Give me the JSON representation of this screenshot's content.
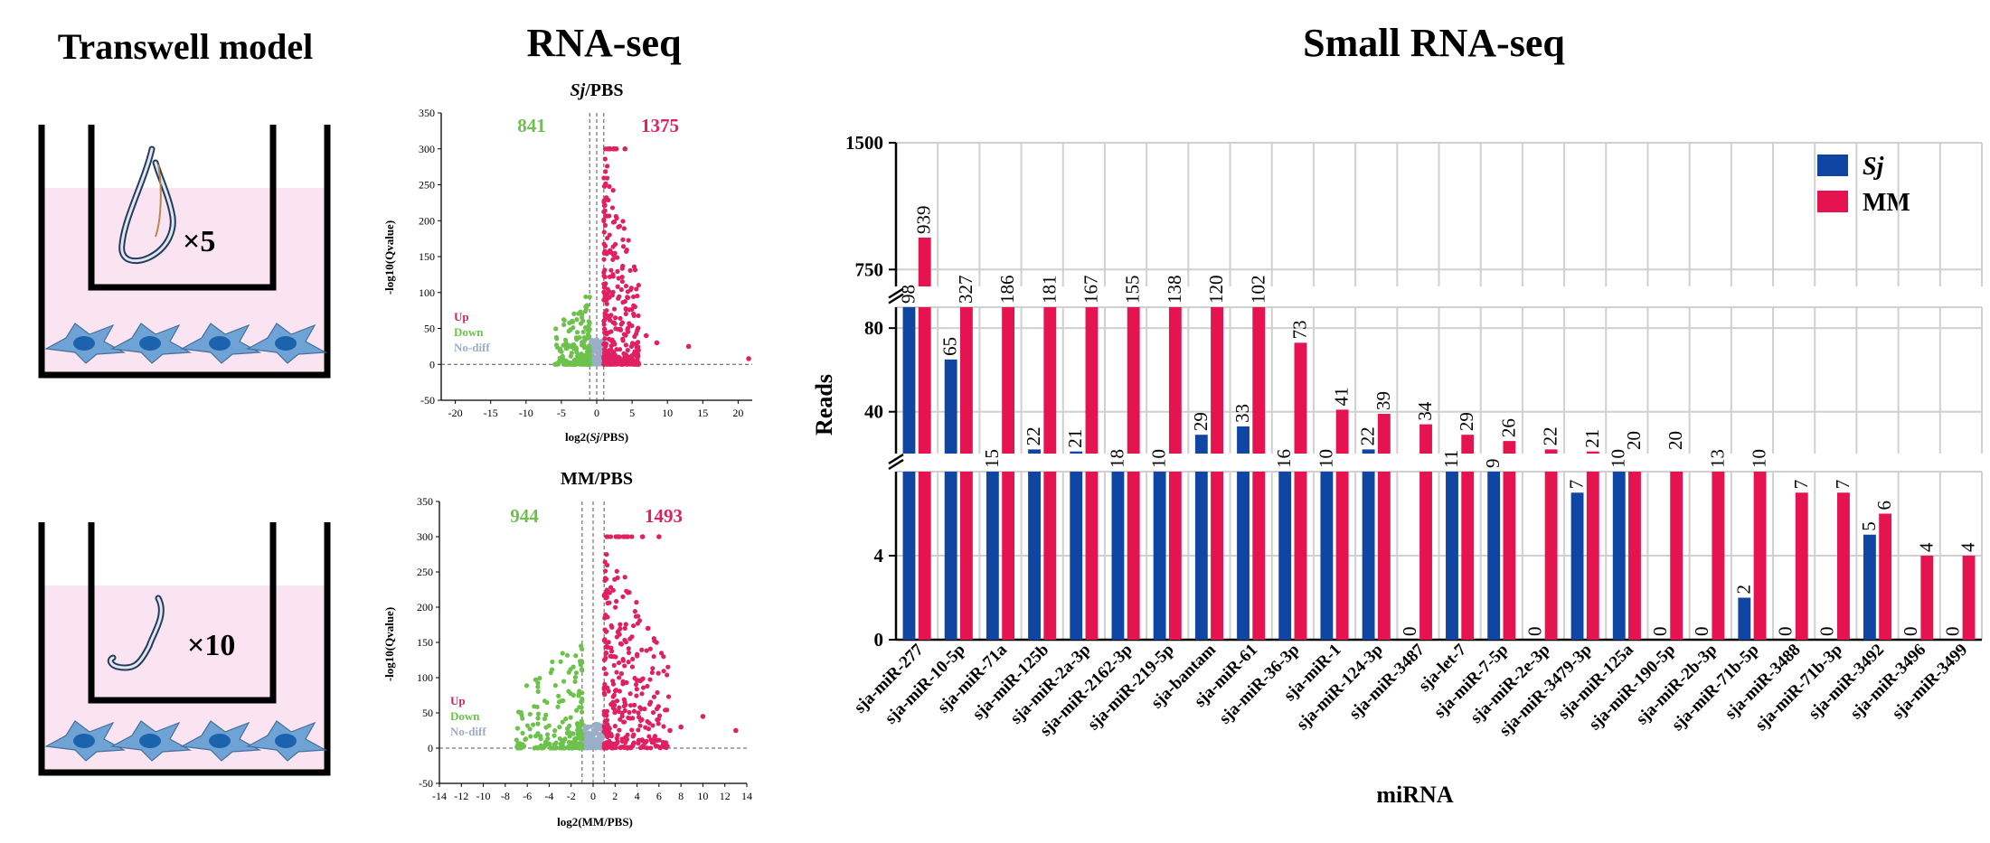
{
  "panels": {
    "transwell_title": "Transwell model",
    "rnaseq_title": "RNA-seq",
    "smallrna_title": "Small RNA-seq",
    "wells": [
      {
        "count_label": "×5"
      },
      {
        "count_label": "×10"
      }
    ]
  },
  "colors": {
    "sj": "#1046a3",
    "mm": "#e5134f",
    "up": "#e02060",
    "down": "#6cc24a",
    "nodiff": "#9aaec8",
    "well_fill": "#fbe4f1",
    "cell_body": "#6fa3d6",
    "cell_nucleus": "#1c63ad"
  },
  "chart_data": [
    {
      "type": "scatter",
      "title_prefix": "Sj",
      "title_suffix": "/PBS",
      "xlabel_prefix": "log2(",
      "xlabel_italic": "Sj",
      "xlabel_suffix": "/PBS)",
      "ylabel": "-log10(Qvalue)",
      "xlim": [
        -22,
        22
      ],
      "ylim": [
        -50,
        350
      ],
      "xticks": [
        "-20",
        "-15",
        "-10",
        "-5",
        "0",
        "5",
        "10",
        "15",
        "20"
      ],
      "xtick_values": [
        -20,
        -15,
        -10,
        -5,
        0,
        5,
        10,
        15,
        20
      ],
      "yticks": [
        "-50",
        "0",
        "50",
        "100",
        "150",
        "200",
        "250",
        "300",
        "350"
      ],
      "ytick_values": [
        -50,
        0,
        50,
        100,
        150,
        200,
        250,
        300,
        350
      ],
      "down_count": "841",
      "up_count": "1375",
      "legend": [
        "Up",
        "Down",
        "No-diff"
      ],
      "thresholds_x": [
        -1,
        1
      ],
      "threshold_y": 0,
      "cloud": {
        "down_max_y": 100,
        "up_max_y": 300,
        "spread": 5
      },
      "outliers": [
        [
          5.5,
          28
        ],
        [
          7,
          40
        ],
        [
          13,
          25
        ],
        [
          8.5,
          30
        ],
        [
          21.5,
          8
        ],
        [
          2.5,
          300
        ],
        [
          4,
          300
        ]
      ]
    },
    {
      "type": "scatter",
      "title_prefix": "MM",
      "title_suffix": "/PBS",
      "xlabel_prefix": "log2(",
      "xlabel_italic": "",
      "xlabel_suffix": "MM/PBS)",
      "ylabel": "-log10(Qvalue)",
      "xlim": [
        -14,
        14
      ],
      "ylim": [
        -50,
        350
      ],
      "xticks": [
        "-14",
        "-12",
        "-10",
        "-8",
        "-6",
        "-4",
        "-2",
        "0",
        "2",
        "4",
        "6",
        "8",
        "10",
        "12",
        "14"
      ],
      "xtick_values": [
        -14,
        -12,
        -10,
        -8,
        -6,
        -4,
        -2,
        0,
        2,
        4,
        6,
        8,
        10,
        12,
        14
      ],
      "yticks": [
        "-50",
        "0",
        "50",
        "100",
        "150",
        "200",
        "250",
        "300",
        "350"
      ],
      "ytick_values": [
        -50,
        0,
        50,
        100,
        150,
        200,
        250,
        300,
        350
      ],
      "down_count": "944",
      "up_count": "1493",
      "legend": [
        "Up",
        "Down",
        "No-diff"
      ],
      "thresholds_x": [
        -1,
        1
      ],
      "threshold_y": 0,
      "cloud": {
        "down_max_y": 160,
        "up_max_y": 300,
        "spread": 6
      },
      "outliers": [
        [
          5,
          170
        ],
        [
          6,
          300
        ],
        [
          7,
          25
        ],
        [
          8,
          30
        ],
        [
          10,
          45
        ],
        [
          13,
          25
        ],
        [
          4.5,
          300
        ]
      ]
    },
    {
      "type": "bar",
      "title": "Small RNA-seq",
      "xlabel": "miRNA",
      "ylabel": "Reads",
      "y_axis_breaks": "segmented: 0–8 | 20–90 | 650–1500",
      "yticks": [
        "0",
        "4",
        "40",
        "80",
        "750",
        "1500"
      ],
      "ytick_values": [
        0,
        4,
        40,
        80,
        750,
        1500
      ],
      "legend": [
        {
          "name": "Sj",
          "italic": true
        },
        {
          "name": "MM",
          "italic": false
        }
      ],
      "categories": [
        "sja-miR-277",
        "sja-miR-10-5p",
        "sja-miR-71a",
        "sja-miR-125b",
        "sja-miR-2a-3p",
        "sja-miR-2162-3p",
        "sja-miR-219-5p",
        "sja-bantam",
        "sja-miR-61",
        "sja-miR-36-3p",
        "sja-miR-1",
        "sja-miR-124-3p",
        "sja-miR-3487",
        "sja-let-7",
        "sja-miR-7-5p",
        "sja-miR-2e-3p",
        "sja-miR-3479-3p",
        "sja-miR-125a",
        "sja-miR-190-5p",
        "sja-miR-2b-3p",
        "sja-miR-71b-5p",
        "sja-miR-3488",
        "sja-miR-71b-3p",
        "sja-miR-3492",
        "sja-miR-3496",
        "sja-miR-3499"
      ],
      "series": [
        {
          "name": "Sj",
          "values": [
            98,
            65,
            15,
            22,
            21,
            18,
            10,
            29,
            33,
            16,
            10,
            22,
            0,
            11,
            9,
            0,
            7,
            10,
            0,
            0,
            2,
            0,
            0,
            5,
            0,
            0
          ],
          "labels": [
            "98",
            "65",
            "15",
            "22",
            "21",
            "18",
            "10",
            "",
            "",
            "",
            "",
            "",
            "0",
            "",
            "9",
            "0",
            "7",
            "10",
            "0",
            "0",
            "2",
            "0",
            "0",
            "5",
            "0",
            "0"
          ]
        },
        {
          "name": "MM",
          "values": [
            939,
            327,
            186,
            181,
            167,
            155,
            138,
            120,
            102,
            73,
            41,
            39,
            34,
            29,
            26,
            22,
            21,
            20,
            20,
            13,
            10,
            7,
            7,
            6,
            4,
            4
          ],
          "labels": [
            "939",
            "327",
            "186",
            "181",
            "167",
            "155",
            "138",
            "120",
            "102",
            "73",
            "41",
            "39",
            "34",
            "29",
            "26",
            "22",
            "21",
            "20",
            "20",
            "13",
            "10",
            "7",
            "7",
            "6",
            "4",
            "4"
          ]
        }
      ],
      "extra_sj_labels": {
        "7": "29",
        "8": "33",
        "9": "16",
        "10": "10",
        "11": "22",
        "13": "11"
      }
    }
  ]
}
